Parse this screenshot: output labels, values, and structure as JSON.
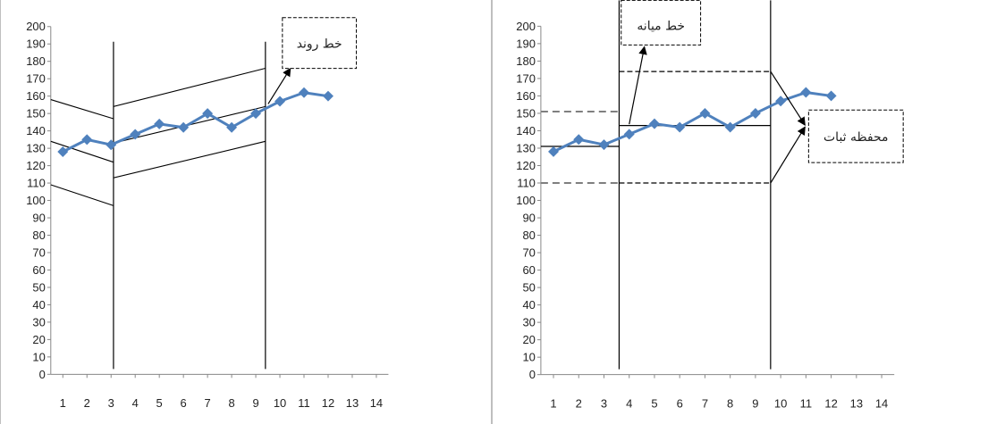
{
  "chart_data": [
    {
      "type": "line",
      "x": [
        1,
        2,
        3,
        4,
        5,
        6,
        7,
        8,
        9,
        10,
        11,
        12
      ],
      "values": [
        128,
        135,
        132,
        138,
        144,
        142,
        150,
        142,
        150,
        157,
        162,
        160
      ],
      "xticks": [
        1,
        2,
        3,
        4,
        5,
        6,
        7,
        8,
        9,
        10,
        11,
        12,
        13,
        14
      ],
      "yticks": [
        0,
        10,
        20,
        30,
        40,
        50,
        60,
        70,
        80,
        90,
        100,
        110,
        120,
        130,
        140,
        150,
        160,
        170,
        180,
        190,
        200
      ],
      "xlim": [
        0.5,
        14.5
      ],
      "ylim": [
        0,
        200
      ],
      "grid": false,
      "series_color": "#4f81bd",
      "phase_lines_x": [
        3.1,
        9.4
      ],
      "trend_lines": [
        {
          "x": [
            0.5,
            3.1
          ],
          "y": [
            158,
            147
          ]
        },
        {
          "x": [
            0.5,
            3.1
          ],
          "y": [
            134,
            122
          ]
        },
        {
          "x": [
            0.5,
            3.1
          ],
          "y": [
            109,
            97
          ]
        },
        {
          "x": [
            3.1,
            9.4
          ],
          "y": [
            154,
            176
          ]
        },
        {
          "x": [
            3.1,
            9.4
          ],
          "y": [
            133,
            154
          ]
        },
        {
          "x": [
            3.1,
            9.4
          ],
          "y": [
            113,
            134
          ]
        }
      ],
      "callout": {
        "text": "خط روند"
      }
    },
    {
      "type": "line",
      "x": [
        1,
        2,
        3,
        4,
        5,
        6,
        7,
        8,
        9,
        10,
        11,
        12
      ],
      "values": [
        128,
        135,
        132,
        138,
        144,
        142,
        150,
        142,
        150,
        157,
        162,
        160
      ],
      "xticks": [
        1,
        2,
        3,
        4,
        5,
        6,
        7,
        8,
        9,
        10,
        11,
        12,
        13,
        14
      ],
      "yticks": [
        0,
        10,
        20,
        30,
        40,
        50,
        60,
        70,
        80,
        90,
        100,
        110,
        120,
        130,
        140,
        150,
        160,
        170,
        180,
        190,
        200
      ],
      "xlim": [
        0.5,
        14.5
      ],
      "ylim": [
        0,
        200
      ],
      "grid": false,
      "series_color": "#4f81bd",
      "phase_lines_x": [
        3.6,
        9.6
      ],
      "mean_lines": [
        {
          "x": [
            0.5,
            3.6
          ],
          "y": 131
        },
        {
          "x": [
            3.6,
            9.6
          ],
          "y": 143
        }
      ],
      "stability_bands": [
        {
          "x": [
            0.5,
            3.6
          ],
          "upper": 151,
          "lower": 110,
          "style": "dashed-gray"
        },
        {
          "x": [
            3.6,
            9.6
          ],
          "upper": 174,
          "lower": 110,
          "style": "dashed-black"
        }
      ],
      "callouts": [
        {
          "text": "خط میانه"
        },
        {
          "text": "محفظه ثبات"
        }
      ]
    }
  ]
}
